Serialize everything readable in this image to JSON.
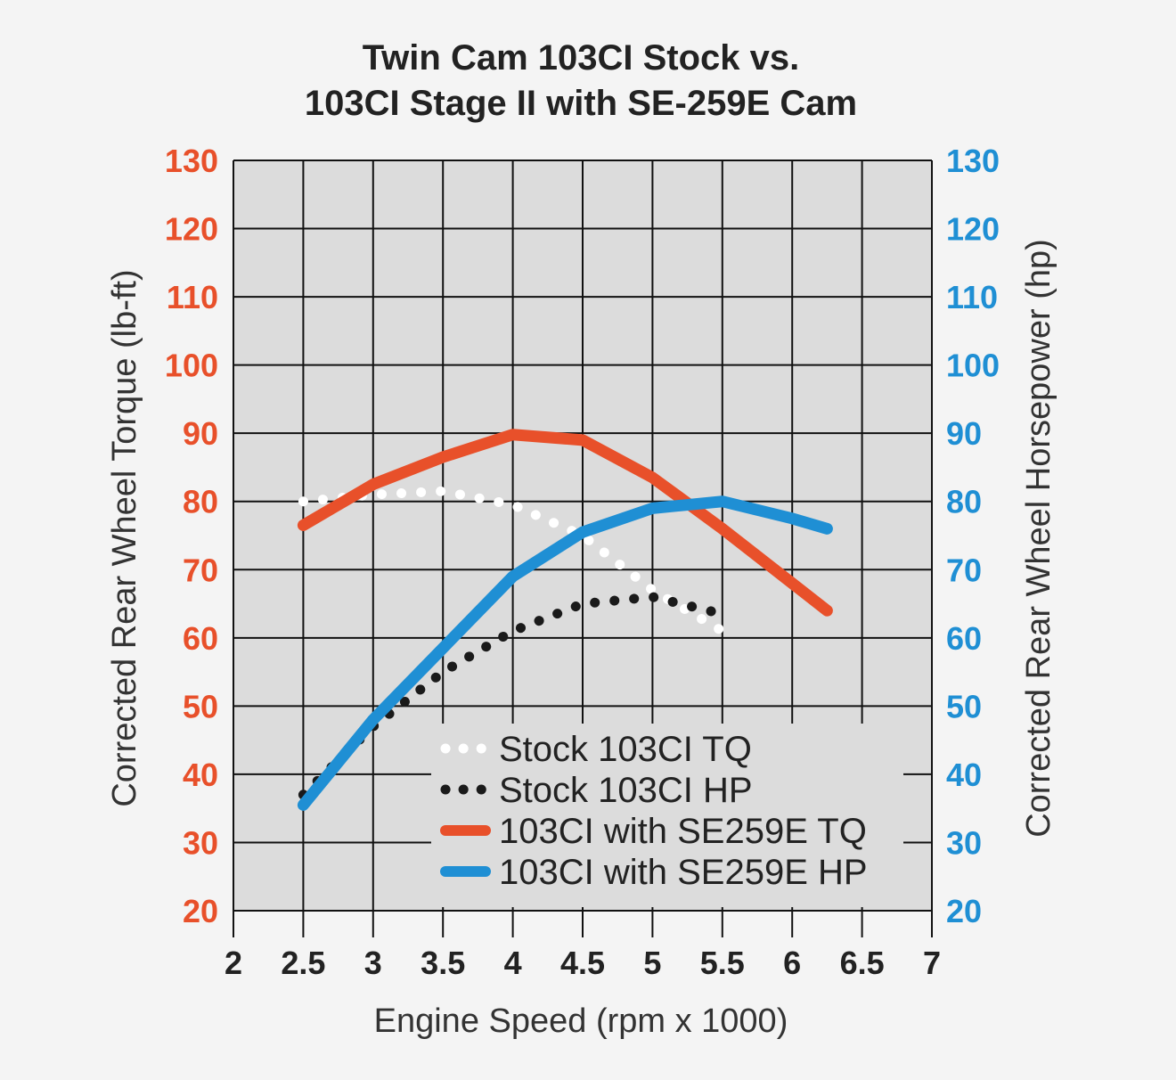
{
  "chart_data": {
    "type": "line",
    "title_lines": [
      "Twin Cam 103CI Stock vs.",
      "103CI Stage II with SE-259E Cam"
    ],
    "xlabel": "Engine Speed (rpm x 1000)",
    "ylabel_left": "Corrected Rear Wheel Torque (lb-ft)",
    "ylabel_right": "Corrected Rear Wheel Horsepower (hp)",
    "xlim": [
      2,
      7
    ],
    "ylim": [
      20,
      130
    ],
    "x_ticks": [
      "2",
      "2.5",
      "3",
      "3.5",
      "4",
      "4.5",
      "5",
      "5.5",
      "6",
      "6.5",
      "7"
    ],
    "y_ticks_left": [
      "20",
      "30",
      "40",
      "50",
      "60",
      "70",
      "80",
      "90",
      "100",
      "110",
      "120",
      "130"
    ],
    "y_ticks_right": [
      "20",
      "30",
      "40",
      "50",
      "60",
      "70",
      "80",
      "90",
      "100",
      "110",
      "120",
      "130"
    ],
    "grid": true,
    "legend_position": "bottom-center",
    "series": [
      {
        "name": "Stock 103CI TQ",
        "style": "dotted",
        "color": "#ffffff",
        "axis": "left",
        "x": [
          2.5,
          3,
          3.5,
          4,
          4.5,
          5,
          5.5
        ],
        "y": [
          80,
          81,
          81.5,
          79.5,
          75,
          67,
          61
        ]
      },
      {
        "name": "Stock 103CI HP",
        "style": "dotted",
        "color": "#1a1a1a",
        "axis": "right",
        "x": [
          2.5,
          3,
          3.5,
          4,
          4.5,
          5,
          5.5
        ],
        "y": [
          37,
          47,
          55,
          61,
          65,
          66,
          63.5
        ]
      },
      {
        "name": "103CI with SE259E TQ",
        "style": "solid",
        "color": "#e8502a",
        "axis": "left",
        "x": [
          2.5,
          3,
          3.5,
          4,
          4.5,
          5,
          5.5,
          6.25
        ],
        "y": [
          76.5,
          82.5,
          86.5,
          89.8,
          89,
          83.5,
          76,
          64
        ]
      },
      {
        "name": "103CI with SE259E HP",
        "style": "solid",
        "color": "#1f8fd4",
        "axis": "right",
        "x": [
          2.5,
          3,
          3.5,
          4,
          4.5,
          5,
          5.5,
          6,
          6.25
        ],
        "y": [
          35.5,
          48,
          58.5,
          69,
          75.5,
          79,
          80,
          77.5,
          76
        ]
      }
    ]
  }
}
